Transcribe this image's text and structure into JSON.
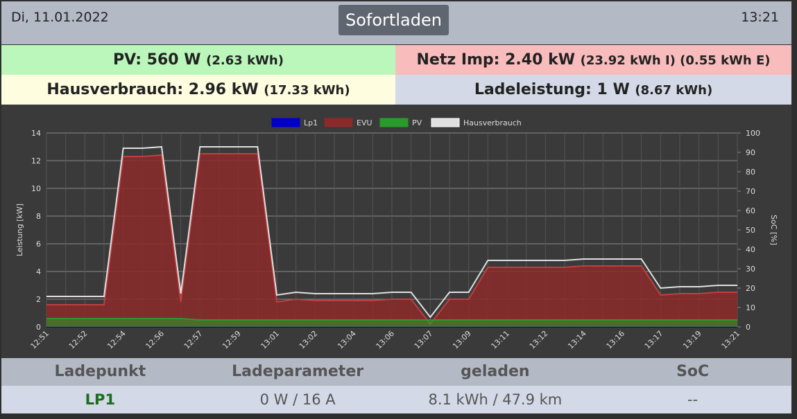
{
  "header": {
    "date": "Di, 11.01.2022",
    "mode": "Sofortladen",
    "time": "13:21"
  },
  "tiles": [
    {
      "label": "PV: 560 W",
      "detail": "(2.63 kWh)"
    },
    {
      "label": "Netz Imp: 2.40 kW",
      "detail": "(23.92 kWh I) (0.55 kWh E)"
    },
    {
      "label": "Hausverbrauch: 2.96 kW",
      "detail": "(17.33 kWh)"
    },
    {
      "label": "Ladeleistung: 1 W",
      "detail": "(8.67 kWh)"
    }
  ],
  "chart_data": {
    "type": "line",
    "ylabel": "Leistung [kW]",
    "y2label": "SoC [%]",
    "categories": [
      "12:51",
      null,
      "12:52",
      null,
      "12:54",
      null,
      "12:56",
      null,
      "12:57",
      null,
      "12:59",
      null,
      "13:01",
      null,
      "13:02",
      null,
      "13:04",
      null,
      "13:06",
      null,
      "13:07",
      null,
      "13:09",
      null,
      "13:11",
      null,
      "13:12",
      null,
      "13:14",
      null,
      "13:16",
      null,
      "13:17",
      null,
      "13:19",
      null,
      "13:21"
    ],
    "series": [
      {
        "name": "Lp1",
        "color": "#0000cc",
        "values": [
          0,
          0,
          0,
          0,
          0,
          0,
          0,
          0,
          0,
          0,
          0,
          0,
          0,
          0,
          0,
          0,
          0,
          0,
          0,
          0,
          0,
          0,
          0,
          0,
          0,
          0,
          0,
          0,
          0,
          0,
          0,
          0,
          0,
          0,
          0,
          0,
          0
        ]
      },
      {
        "name": "EVU",
        "color": "#8b2a2a",
        "values": [
          1.6,
          1.6,
          1.6,
          1.6,
          12.3,
          12.3,
          12.4,
          1.8,
          12.5,
          12.5,
          12.5,
          12.5,
          1.8,
          2.0,
          1.9,
          1.9,
          1.9,
          1.9,
          2.0,
          2.0,
          0.2,
          2.0,
          2.0,
          4.3,
          4.3,
          4.3,
          4.3,
          4.3,
          4.4,
          4.4,
          4.4,
          4.4,
          2.3,
          2.4,
          2.4,
          2.5,
          2.5
        ]
      },
      {
        "name": "PV",
        "color": "#2a9a2a",
        "values": [
          0.6,
          0.6,
          0.6,
          0.6,
          0.6,
          0.6,
          0.6,
          0.6,
          0.5,
          0.5,
          0.5,
          0.5,
          0.5,
          0.5,
          0.5,
          0.5,
          0.5,
          0.5,
          0.5,
          0.5,
          0.5,
          0.5,
          0.5,
          0.5,
          0.5,
          0.5,
          0.5,
          0.5,
          0.5,
          0.5,
          0.5,
          0.5,
          0.5,
          0.5,
          0.5,
          0.5,
          0.5
        ]
      },
      {
        "name": "Hausverbrauch",
        "color": "#e0e0e0",
        "values": [
          2.2,
          2.2,
          2.2,
          2.2,
          12.9,
          12.9,
          13.0,
          2.4,
          13.0,
          13.0,
          13.0,
          13.0,
          2.3,
          2.5,
          2.4,
          2.4,
          2.4,
          2.4,
          2.5,
          2.5,
          0.7,
          2.5,
          2.5,
          4.8,
          4.8,
          4.8,
          4.8,
          4.8,
          4.9,
          4.9,
          4.9,
          4.9,
          2.8,
          2.9,
          2.9,
          3.0,
          3.0
        ]
      }
    ],
    "ylim": [
      0,
      14
    ],
    "yticks": [
      0,
      2,
      4,
      6,
      8,
      10,
      12,
      14
    ],
    "y2lim": [
      0,
      100
    ],
    "y2ticks": [
      0,
      10,
      20,
      30,
      40,
      50,
      60,
      70,
      80,
      90,
      100
    ],
    "grid": true
  },
  "table": {
    "header": [
      "Ladepunkt",
      "Ladeparameter",
      "geladen",
      "SoC"
    ],
    "rows": [
      [
        "LP1",
        "0 W / 16 A",
        "8.1 kWh / 47.9 km",
        "--"
      ]
    ]
  }
}
